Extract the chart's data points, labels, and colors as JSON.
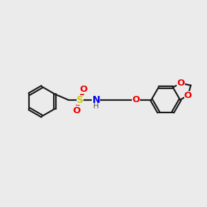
{
  "background_color": "#ebebeb",
  "bond_color": "#1a1a1a",
  "S_color": "#cccc00",
  "N_color": "#0000ee",
  "O_color": "#ee0000",
  "figsize": [
    3.0,
    3.0
  ],
  "dpi": 100,
  "xlim": [
    0,
    10
  ],
  "ylim": [
    0,
    10
  ]
}
